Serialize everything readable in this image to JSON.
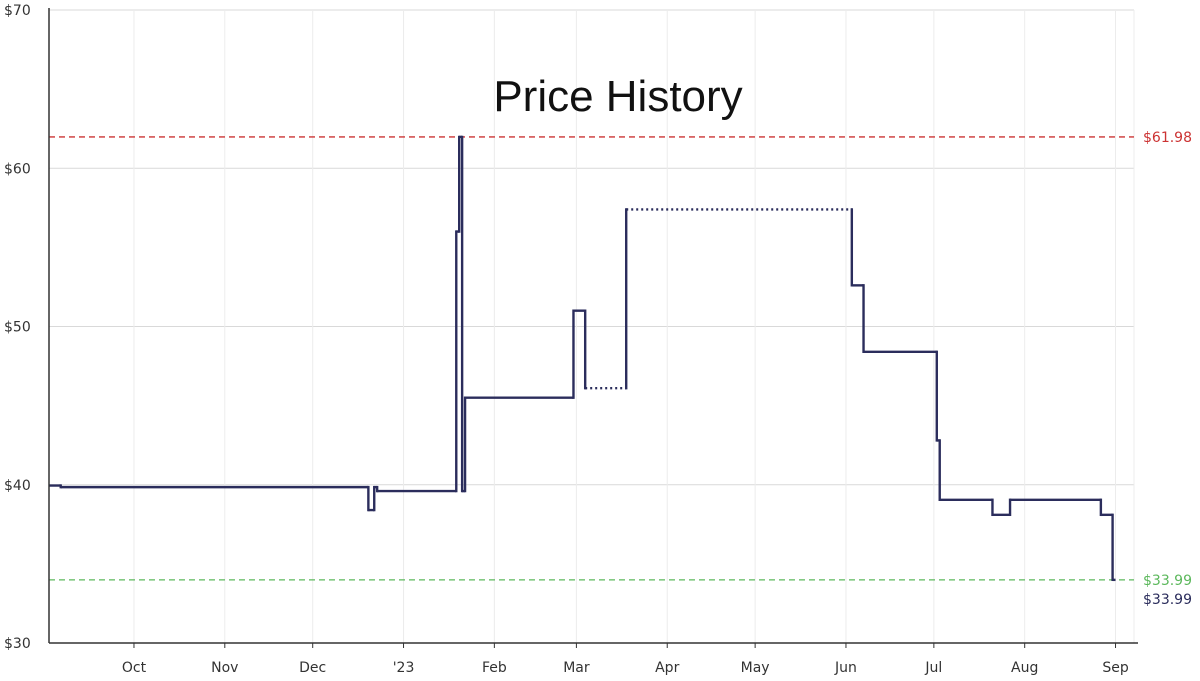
{
  "chart_data": {
    "type": "line",
    "title": "Price History",
    "xlabel": "",
    "ylabel": "",
    "ylim": [
      30,
      70
    ],
    "y_ticks": [
      30,
      40,
      50,
      60,
      70
    ],
    "y_tick_labels": [
      "$30",
      "$40",
      "$50",
      "$60",
      "$70"
    ],
    "x_ticks": [
      {
        "label": "Oct",
        "date": "2022-10-01"
      },
      {
        "label": "Nov",
        "date": "2022-11-01"
      },
      {
        "label": "Dec",
        "date": "2022-12-01"
      },
      {
        "label": "'23",
        "date": "2023-01-01"
      },
      {
        "label": "Feb",
        "date": "2023-02-01"
      },
      {
        "label": "Mar",
        "date": "2023-03-01"
      },
      {
        "label": "Apr",
        "date": "2023-04-01"
      },
      {
        "label": "May",
        "date": "2023-05-01"
      },
      {
        "label": "Jun",
        "date": "2023-06-01"
      },
      {
        "label": "Jul",
        "date": "2023-07-01"
      },
      {
        "label": "Aug",
        "date": "2023-08-01"
      },
      {
        "label": "Sep",
        "date": "2023-09-01"
      }
    ],
    "xlim": [
      "2022-09-02",
      "2023-09-01"
    ],
    "grid": true,
    "series": [
      {
        "color": "#2b2d5c",
        "step": true,
        "points": [
          {
            "date": "2022-09-02",
            "price": 39.95
          },
          {
            "date": "2022-09-06",
            "price": 39.85
          },
          {
            "date": "2022-12-20",
            "price": 38.4
          },
          {
            "date": "2022-12-22",
            "price": 39.85
          },
          {
            "date": "2022-12-23",
            "price": 39.6
          },
          {
            "date": "2023-01-19",
            "price": 56.0
          },
          {
            "date": "2023-01-20",
            "price": 61.98
          },
          {
            "date": "2023-01-21",
            "price": 39.6
          },
          {
            "date": "2023-01-22",
            "price": 45.5
          },
          {
            "date": "2023-02-28",
            "price": 51.0
          },
          {
            "date": "2023-03-04",
            "price": 46.1
          },
          {
            "date": "2023-03-18",
            "price": 57.4,
            "gap_before": true
          },
          {
            "date": "2023-06-03",
            "price": 52.6,
            "gap_before": true
          },
          {
            "date": "2023-06-07",
            "price": 48.4
          },
          {
            "date": "2023-07-02",
            "price": 42.8
          },
          {
            "date": "2023-07-03",
            "price": 39.05
          },
          {
            "date": "2023-07-21",
            "price": 38.1
          },
          {
            "date": "2023-07-27",
            "price": 39.05
          },
          {
            "date": "2023-08-27",
            "price": 38.1
          },
          {
            "date": "2023-08-31",
            "price": 33.99
          }
        ],
        "end_date": "2023-09-01"
      }
    ],
    "reference_lines": [
      {
        "kind": "highest",
        "value": 61.98,
        "label": "$61.98",
        "color": "#cc3333"
      },
      {
        "kind": "lowest",
        "value": 33.99,
        "label": "$33.99",
        "color": "#5cb85c"
      }
    ],
    "current_price": {
      "value": 33.99,
      "label": "$33.99",
      "color": "#2b2d5c"
    }
  }
}
